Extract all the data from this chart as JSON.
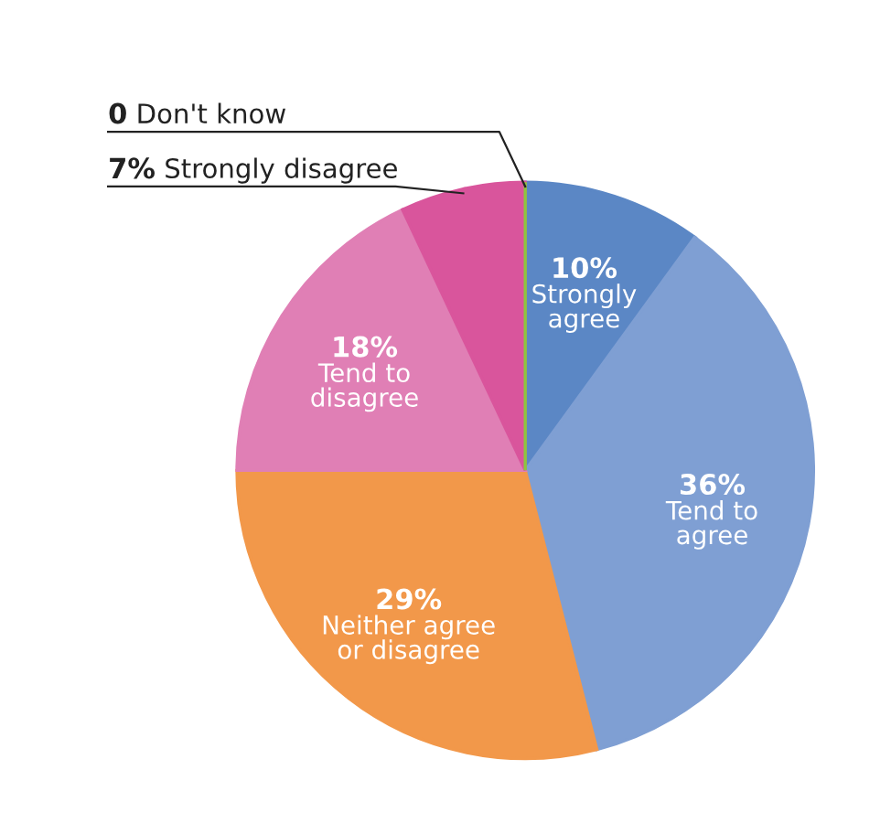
{
  "chart_data": {
    "type": "pie",
    "categories": [
      "Strongly\nagree",
      "Tend to\nagree",
      "Neither agree\nor disagree",
      "Tend to\ndisagree",
      "Strongly disagree",
      "Don't know"
    ],
    "values": [
      10,
      36,
      29,
      18,
      7,
      0
    ],
    "value_labels": [
      "10%",
      "36%",
      "29%",
      "18%",
      "7%",
      "0"
    ],
    "colors": [
      "#5b87c5",
      "#7f9fd3",
      "#f2984a",
      "#e07fb5",
      "#d9559c",
      "#8cc63f"
    ],
    "legend": false
  }
}
